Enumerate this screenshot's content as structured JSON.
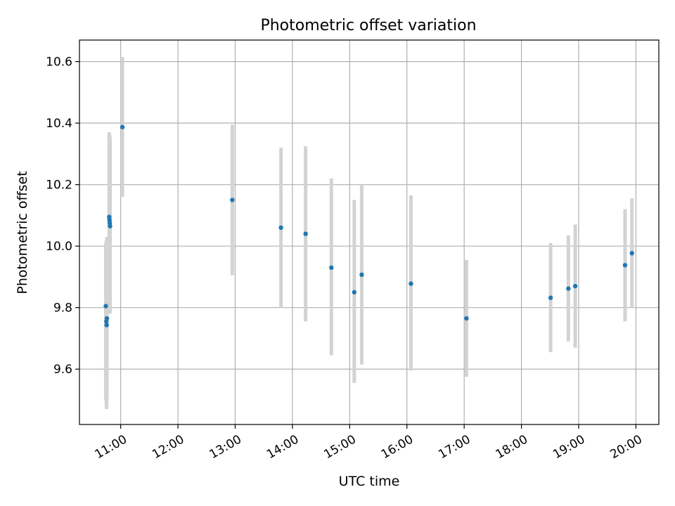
{
  "chart_data": {
    "type": "scatter",
    "title": "Photometric offset variation",
    "xlabel": "UTC time",
    "ylabel": "Photometric offset",
    "x_unit": "hours UTC",
    "xlim": [
      10.28,
      20.4
    ],
    "ylim": [
      9.42,
      10.67
    ],
    "xticks": [
      {
        "value": 11,
        "label": "11:00"
      },
      {
        "value": 12,
        "label": "12:00"
      },
      {
        "value": 13,
        "label": "13:00"
      },
      {
        "value": 14,
        "label": "14:00"
      },
      {
        "value": 15,
        "label": "15:00"
      },
      {
        "value": 16,
        "label": "16:00"
      },
      {
        "value": 17,
        "label": "17:00"
      },
      {
        "value": 18,
        "label": "18:00"
      },
      {
        "value": 19,
        "label": "19:00"
      },
      {
        "value": 20,
        "label": "20:00"
      }
    ],
    "yticks": [
      {
        "value": 9.6,
        "label": "9.6"
      },
      {
        "value": 9.8,
        "label": "9.8"
      },
      {
        "value": 10.0,
        "label": "10.0"
      },
      {
        "value": 10.2,
        "label": "10.2"
      },
      {
        "value": 10.4,
        "label": "10.4"
      },
      {
        "value": 10.6,
        "label": "10.6"
      }
    ],
    "grid": true,
    "marker_color": "#1f77b4",
    "errorbar_color": "#d3d3d3",
    "points": [
      {
        "x": 10.74,
        "y": 9.805,
        "ylow": 9.5,
        "yhigh": 10.01
      },
      {
        "x": 10.75,
        "y": 9.755,
        "ylow": 9.48,
        "yhigh": 10.02
      },
      {
        "x": 10.755,
        "y": 9.743,
        "ylow": 9.47,
        "yhigh": 10.01
      },
      {
        "x": 10.76,
        "y": 9.765,
        "ylow": 9.5,
        "yhigh": 10.03
      },
      {
        "x": 10.8,
        "y": 10.095,
        "ylow": 9.8,
        "yhigh": 10.37
      },
      {
        "x": 10.805,
        "y": 10.085,
        "ylow": 9.79,
        "yhigh": 10.36
      },
      {
        "x": 10.81,
        "y": 10.075,
        "ylow": 9.78,
        "yhigh": 10.36
      },
      {
        "x": 10.815,
        "y": 10.065,
        "ylow": 9.78,
        "yhigh": 10.35
      },
      {
        "x": 11.03,
        "y": 10.387,
        "ylow": 10.16,
        "yhigh": 10.615
      },
      {
        "x": 12.95,
        "y": 10.15,
        "ylow": 9.905,
        "yhigh": 10.395
      },
      {
        "x": 13.8,
        "y": 10.06,
        "ylow": 9.8,
        "yhigh": 10.32
      },
      {
        "x": 14.23,
        "y": 10.04,
        "ylow": 9.755,
        "yhigh": 10.325
      },
      {
        "x": 14.68,
        "y": 9.93,
        "ylow": 9.645,
        "yhigh": 10.22
      },
      {
        "x": 15.08,
        "y": 9.85,
        "ylow": 9.555,
        "yhigh": 10.15
      },
      {
        "x": 15.21,
        "y": 9.907,
        "ylow": 9.615,
        "yhigh": 10.2
      },
      {
        "x": 16.07,
        "y": 9.878,
        "ylow": 9.595,
        "yhigh": 10.165
      },
      {
        "x": 17.04,
        "y": 9.765,
        "ylow": 9.575,
        "yhigh": 9.955
      },
      {
        "x": 18.51,
        "y": 9.832,
        "ylow": 9.655,
        "yhigh": 10.01
      },
      {
        "x": 18.82,
        "y": 9.862,
        "ylow": 9.69,
        "yhigh": 10.035
      },
      {
        "x": 18.94,
        "y": 9.87,
        "ylow": 9.67,
        "yhigh": 10.07
      },
      {
        "x": 19.81,
        "y": 9.938,
        "ylow": 9.755,
        "yhigh": 10.12
      },
      {
        "x": 19.93,
        "y": 9.977,
        "ylow": 9.8,
        "yhigh": 10.155
      }
    ]
  }
}
